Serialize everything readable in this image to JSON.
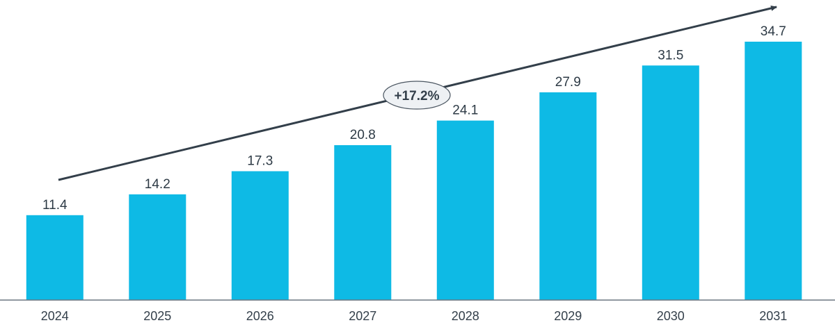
{
  "chart_data": {
    "type": "bar",
    "categories": [
      "2024",
      "2025",
      "2026",
      "2027",
      "2028",
      "2029",
      "2030",
      "2031"
    ],
    "values": [
      11.4,
      14.2,
      17.3,
      20.8,
      24.1,
      27.9,
      31.5,
      34.7
    ],
    "data_labels": [
      "11.4",
      "14.2",
      "17.3",
      "20.8",
      "24.1",
      "27.9",
      "31.5",
      "34.7"
    ],
    "title": "",
    "xlabel": "",
    "ylabel": "",
    "ylim": [
      0,
      34.7
    ],
    "grid": false,
    "legend": "none",
    "bar_color": "#0ebae5",
    "annotation": {
      "type": "trend-arrow",
      "label": "+17.2%",
      "color": "#333f4a",
      "badge_fill": "#eef1f4"
    }
  }
}
